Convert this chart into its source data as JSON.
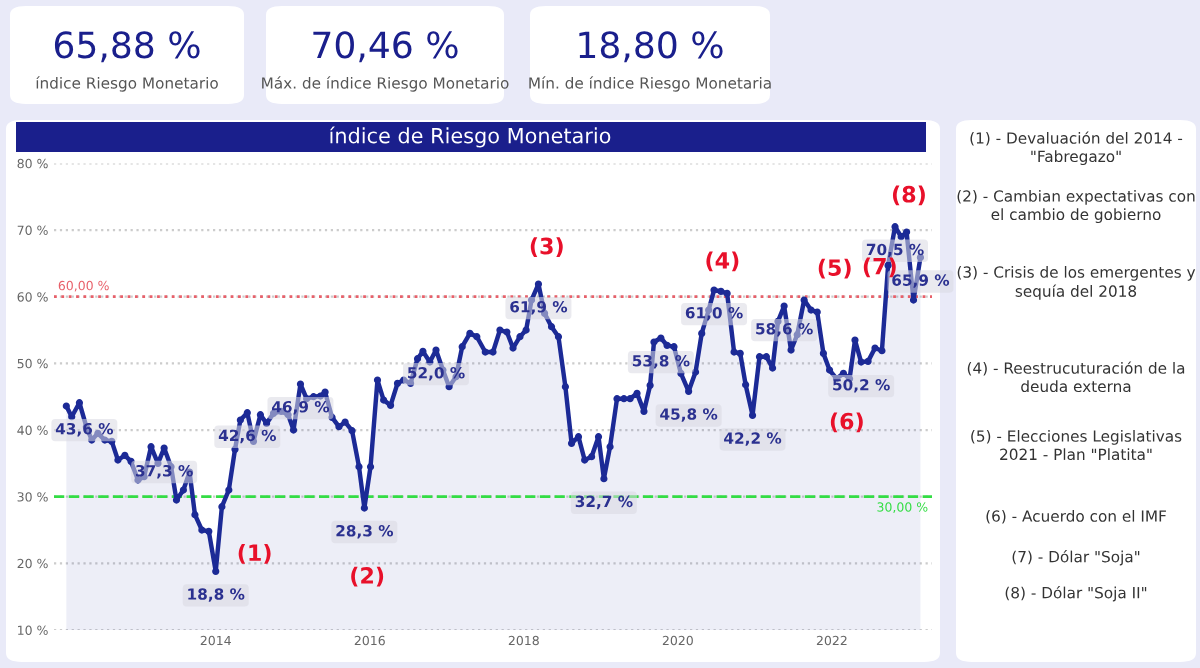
{
  "chart_data": {
    "type": "area",
    "title": "índice de Riesgo Monetario",
    "x": [
      2012.06,
      2012.13,
      2012.23,
      2012.32,
      2012.39,
      2012.47,
      2012.56,
      2012.65,
      2012.73,
      2012.82,
      2012.9,
      2012.99,
      2013.07,
      2013.16,
      2013.25,
      2013.33,
      2013.42,
      2013.49,
      2013.58,
      2013.66,
      2013.73,
      2013.82,
      2013.91,
      2014.0,
      2014.08,
      2014.17,
      2014.25,
      2014.32,
      2014.41,
      2014.49,
      2014.58,
      2014.66,
      2014.75,
      2014.85,
      2014.94,
      2015.01,
      2015.1,
      2015.18,
      2015.27,
      2015.36,
      2015.42,
      2015.51,
      2015.6,
      2015.68,
      2015.77,
      2015.86,
      2015.93,
      2016.01,
      2016.1,
      2016.18,
      2016.27,
      2016.36,
      2016.44,
      2016.53,
      2016.62,
      2016.69,
      2016.78,
      2016.86,
      2016.95,
      2017.03,
      2017.12,
      2017.2,
      2017.3,
      2017.39,
      2017.5,
      2017.6,
      2017.69,
      2017.78,
      2017.86,
      2017.95,
      2018.03,
      2018.1,
      2018.19,
      2018.27,
      2018.36,
      2018.45,
      2018.54,
      2018.62,
      2018.71,
      2018.79,
      2018.88,
      2018.97,
      2019.04,
      2019.12,
      2019.21,
      2019.3,
      2019.38,
      2019.47,
      2019.56,
      2019.64,
      2019.69,
      2019.78,
      2019.86,
      2019.95,
      2020.04,
      2020.14,
      2020.23,
      2020.31,
      2020.4,
      2020.47,
      2020.56,
      2020.64,
      2020.73,
      2020.81,
      2020.88,
      2020.97,
      2021.06,
      2021.15,
      2021.23,
      2021.3,
      2021.38,
      2021.47,
      2021.55,
      2021.64,
      2021.73,
      2021.81,
      2021.89,
      2021.97,
      2022.06,
      2022.15,
      2022.23,
      2022.3,
      2022.38,
      2022.47,
      2022.56,
      2022.65,
      2022.73,
      2022.82,
      2022.9,
      2022.97,
      2023.06,
      2023.15
    ],
    "series": [
      {
        "color": "#1c2a96",
        "values": [
          43.6,
          42.0,
          44.1,
          40.5,
          38.5,
          39.5,
          38.5,
          38.3,
          35.5,
          36.2,
          35.3,
          32.5,
          33.0,
          37.5,
          35.0,
          37.3,
          34.5,
          29.5,
          31.0,
          33.7,
          27.3,
          25.0,
          24.8,
          18.8,
          28.5,
          31.0,
          37.1,
          41.5,
          42.6,
          38.3,
          42.3,
          41.0,
          42.5,
          42.8,
          42.3,
          40.0,
          46.9,
          44.7,
          45.0,
          45.1,
          45.7,
          41.9,
          40.5,
          41.2,
          39.9,
          34.5,
          28.3,
          34.5,
          47.5,
          44.5,
          43.7,
          47.0,
          47.5,
          47.0,
          50.7,
          51.8,
          50.2,
          52.0,
          49.0,
          46.5,
          48.0,
          52.5,
          54.5,
          54.0,
          51.7,
          51.7,
          55.0,
          54.7,
          52.3,
          54.0,
          55.0,
          59.5,
          61.9,
          57.5,
          55.5,
          54.0,
          46.5,
          38.0,
          39.0,
          35.5,
          36.0,
          39.0,
          32.7,
          37.5,
          44.7,
          44.7,
          44.7,
          45.5,
          42.8,
          46.7,
          53.2,
          53.8,
          52.7,
          52.5,
          48.5,
          45.8,
          48.7,
          54.5,
          58.0,
          61.0,
          60.8,
          60.5,
          51.7,
          51.5,
          46.8,
          42.2,
          51.0,
          51.0,
          49.3,
          56.3,
          58.6,
          52.0,
          54.3,
          59.5,
          58.0,
          57.7,
          51.5,
          49.0,
          47.7,
          48.5,
          47.7,
          53.5,
          50.2,
          50.3,
          52.3,
          51.9,
          64.7,
          70.5,
          69.0,
          69.7,
          59.5,
          65.9
        ],
        "value_labels": [
          "43,6 %",
          null,
          null,
          null,
          null,
          null,
          null,
          null,
          null,
          null,
          null,
          null,
          null,
          null,
          null,
          "37,3 %",
          null,
          null,
          null,
          null,
          null,
          null,
          null,
          "18,8 %",
          null,
          null,
          null,
          null,
          "42,6 %",
          null,
          null,
          null,
          null,
          null,
          null,
          null,
          "46,9 %",
          null,
          null,
          null,
          null,
          null,
          null,
          null,
          null,
          null,
          "28,3 %",
          null,
          null,
          null,
          null,
          null,
          null,
          null,
          null,
          null,
          null,
          "52,0 %",
          null,
          null,
          null,
          null,
          null,
          null,
          null,
          null,
          null,
          null,
          null,
          null,
          null,
          null,
          "61,9 %",
          null,
          null,
          null,
          null,
          null,
          null,
          null,
          null,
          null,
          "32,7 %",
          null,
          null,
          null,
          null,
          null,
          null,
          null,
          null,
          "53,8 %",
          null,
          null,
          null,
          "45,8 %",
          null,
          null,
          null,
          "61,0 %",
          null,
          null,
          null,
          null,
          null,
          "42,2 %",
          null,
          null,
          null,
          null,
          "58,6 %",
          null,
          null,
          null,
          null,
          null,
          null,
          null,
          null,
          null,
          null,
          null,
          "50,2 %",
          null,
          null,
          null,
          null,
          "70,5 %",
          null,
          null,
          null,
          "65,9 %"
        ]
      }
    ],
    "marker": "circle",
    "xlim": [
      2011.9,
      2023.3
    ],
    "xticks": [
      2014,
      2016,
      2018,
      2020,
      2022
    ],
    "ylim": [
      10,
      80
    ],
    "yticks": [
      {
        "value": 10,
        "label": "10 %"
      },
      {
        "value": 20,
        "label": "20 %"
      },
      {
        "value": 30,
        "label": "30 %"
      },
      {
        "value": 40,
        "label": "40 %"
      },
      {
        "value": 50,
        "label": "50 %"
      },
      {
        "value": 60,
        "label": "60 %"
      },
      {
        "value": 70,
        "label": "70 %"
      },
      {
        "value": 80,
        "label": "80 %"
      }
    ],
    "grid": "y",
    "ref_lines": [
      {
        "axis": "y",
        "value": 60,
        "label": "60,00 %",
        "color": "#e8606a",
        "line_style": "dotted"
      },
      {
        "axis": "y",
        "value": 30,
        "label": "30,00 %",
        "color": "#33dd44",
        "line_style": "dashed"
      }
    ],
    "annotations": [
      "65,88 %",
      "índice Riesgo Monetario",
      "70,46 %",
      "Máx. de índice Riesgo Monetario",
      "18,80 %",
      "Mín. de índice Riesgo Monetaria",
      "(1) - Devaluación del 2014 - \"Fabregazo\"",
      "(2) - Cambian expectativas con el cambio de gobierno",
      "(3) - Crisis de los emergentes y sequía del 2018",
      "(4) - Reestrucuturación de la deuda externa",
      "(5) - Elecciones Legislativas 2021 - Plan \"Platita\"",
      "(6) - Acuerdo con el IMF",
      "(7) - Dólar \"Soja\"",
      "(8) - Dólar \"Soja II\"",
      {
        "text": "(1)",
        "x": 2014.0,
        "y": 18.8
      },
      {
        "text": "(2)",
        "x": 2015.93,
        "y": 28.3
      },
      {
        "text": "(3)",
        "x": 2018.19,
        "y": 61.9
      },
      {
        "text": "(4)",
        "x": 2020.47,
        "y": 61.0
      },
      {
        "text": "(5)",
        "x": 2021.64,
        "y": 59.5
      },
      {
        "text": "(6)",
        "x": 2022.23,
        "y": 47.7
      },
      {
        "text": "(7)",
        "x": 2022.73,
        "y": 64.7
      },
      {
        "text": "(8)",
        "x": 2022.82,
        "y": 70.5
      }
    ]
  }
}
